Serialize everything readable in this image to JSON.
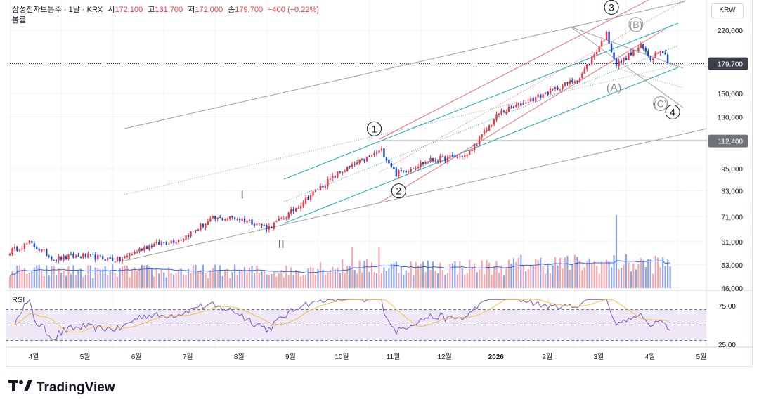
{
  "legend": {
    "name": "삼성전자보통주 · 1날 · KRX",
    "open_label": "시",
    "open": "172,100",
    "high_label": "고",
    "high": "181,700",
    "low_label": "저",
    "low": "172,000",
    "close_label": "종",
    "close": "179,700",
    "change": "−400 (−0.22%)"
  },
  "volume_label": "볼륨",
  "rsi_label": "RSI",
  "currency": "KRW",
  "brand": "TradingView",
  "colors": {
    "up": "#f23645",
    "down": "#1848cc",
    "grid": "#f0f3fa",
    "vol_up": "#f7a6ac",
    "vol_down": "#8fa4e6",
    "vol_ma": "#2962ff",
    "rsi": "#7e57c2",
    "rsi_ma": "#f5c242",
    "rsi_band": "#ede7f6",
    "trend_gray": "#a0a0a0",
    "trend_red": "#f26b73",
    "trend_teal": "#22aab5"
  },
  "chart_data": {
    "type": "candlestick",
    "price_axis": {
      "scale": "log",
      "range": [
        46000,
        260000
      ],
      "ticks": [
        "220,000",
        "150,000",
        "130,000",
        "95,000",
        "83,000",
        "71,000",
        "61,000",
        "53,000",
        "46,000"
      ],
      "tick_values": [
        220000,
        150000,
        130000,
        95000,
        83000,
        71000,
        61000,
        53000,
        46000
      ],
      "tags": [
        {
          "label": "179,700",
          "value": 179700,
          "style": "dark"
        },
        {
          "label": "112,400",
          "value": 112400,
          "style": "gray"
        }
      ]
    },
    "time_axis": {
      "labels": [
        "4월",
        "5월",
        "6월",
        "7월",
        "8월",
        "9월",
        "10월",
        "11월",
        "12월",
        "2026",
        "2월",
        "3월",
        "4월",
        "5월"
      ],
      "label_index": [
        0,
        21,
        42,
        63,
        84,
        105,
        126,
        147,
        168,
        189,
        210,
        231,
        252,
        273
      ],
      "total_slots": 290
    },
    "ohlc_anchors": [
      {
        "i": 0,
        "price": 57500
      },
      {
        "i": 8,
        "price": 60500
      },
      {
        "i": 18,
        "price": 55000
      },
      {
        "i": 30,
        "price": 56000
      },
      {
        "i": 45,
        "price": 54500
      },
      {
        "i": 55,
        "price": 59000
      },
      {
        "i": 70,
        "price": 62000
      },
      {
        "i": 83,
        "price": 70000
      },
      {
        "i": 92,
        "price": 70500
      },
      {
        "i": 100,
        "price": 68500
      },
      {
        "i": 106,
        "price": 66500
      },
      {
        "i": 114,
        "price": 72000
      },
      {
        "i": 125,
        "price": 83000
      },
      {
        "i": 135,
        "price": 93000
      },
      {
        "i": 152,
        "price": 106000
      },
      {
        "i": 158,
        "price": 92000
      },
      {
        "i": 172,
        "price": 100000
      },
      {
        "i": 187,
        "price": 103000
      },
      {
        "i": 200,
        "price": 133000
      },
      {
        "i": 215,
        "price": 146000
      },
      {
        "i": 233,
        "price": 165000
      },
      {
        "i": 244,
        "price": 215000
      },
      {
        "i": 248,
        "price": 178000
      },
      {
        "i": 258,
        "price": 200000
      },
      {
        "i": 262,
        "price": 185000
      },
      {
        "i": 266,
        "price": 198000
      },
      {
        "i": 270,
        "price": 179700
      }
    ],
    "last_index": 270,
    "wave_labels": [
      {
        "text": "1",
        "circled": true,
        "i": 149,
        "price": 121000,
        "color": "#131722"
      },
      {
        "text": "2",
        "circled": true,
        "i": 159,
        "price": 83000,
        "color": "#131722"
      },
      {
        "text": "3",
        "circled": true,
        "i": 246,
        "price": 253000,
        "color": "#131722"
      },
      {
        "text": "4",
        "circled": true,
        "i": 271,
        "price": 134000,
        "color": "#131722"
      },
      {
        "text": "(B)",
        "circled": true,
        "i": 256,
        "price": 228000,
        "color": "#909090"
      },
      {
        "text": "(A)",
        "circled": false,
        "i": 247,
        "price": 155000,
        "color": "#909090"
      },
      {
        "text": "(C)",
        "circled": true,
        "i": 266,
        "price": 141000,
        "color": "#909090"
      },
      {
        "text": "I",
        "circled": false,
        "i": 95,
        "price": 81000,
        "color": "#131722"
      },
      {
        "text": "II",
        "circled": false,
        "i": 111,
        "price": 60000,
        "color": "#131722"
      }
    ],
    "rsi": {
      "range": [
        25,
        85
      ],
      "ticks": [
        "75.00",
        "25.00"
      ],
      "tick_values": [
        75,
        25
      ],
      "band": [
        30,
        70
      ]
    }
  }
}
